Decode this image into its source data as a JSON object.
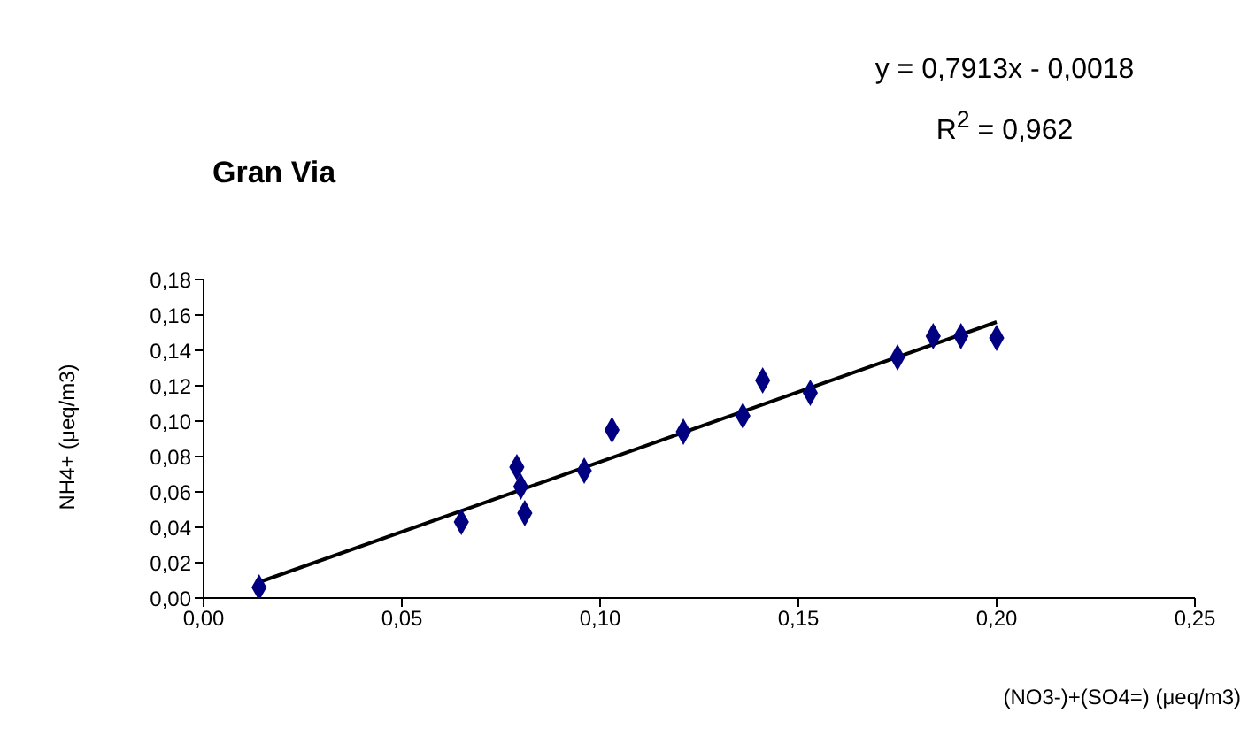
{
  "chart_data": {
    "type": "scatter",
    "title": "Gran Via",
    "xlabel": "(NO3-)+(SO4=) (μeq/m3)",
    "ylabel": "NH4+ (μeq/m3)",
    "annotations": [
      "y = 0,7913x - 0,0018",
      "R$^{2}$ = 0,962"
    ],
    "xlim": [
      0,
      0.25
    ],
    "ylim": [
      0,
      0.18
    ],
    "xticks": [
      {
        "value": 0,
        "label": "0,00"
      },
      {
        "value": 0.05,
        "label": "0,05"
      },
      {
        "value": 0.1,
        "label": "0,10"
      },
      {
        "value": 0.15,
        "label": "0,15"
      },
      {
        "value": 0.2,
        "label": "0,20"
      },
      {
        "value": 0.25,
        "label": "0,25"
      }
    ],
    "yticks": [
      {
        "value": 0,
        "label": "0,00"
      },
      {
        "value": 0.02,
        "label": "0,02"
      },
      {
        "value": 0.04,
        "label": "0,04"
      },
      {
        "value": 0.06,
        "label": "0,06"
      },
      {
        "value": 0.08,
        "label": "0,08"
      },
      {
        "value": 0.1,
        "label": "0,10"
      },
      {
        "value": 0.12,
        "label": "0,12"
      },
      {
        "value": 0.14,
        "label": "0,14"
      },
      {
        "value": 0.16,
        "label": "0,16"
      },
      {
        "value": 0.18,
        "label": "0,18"
      }
    ],
    "series": [
      {
        "marker": "diamond",
        "color": "#000080",
        "x": [
          0.014,
          0.065,
          0.079,
          0.08,
          0.081,
          0.096,
          0.103,
          0.121,
          0.136,
          0.141,
          0.153,
          0.175,
          0.184,
          0.191,
          0.2
        ],
        "values": [
          0.006,
          0.043,
          0.074,
          0.063,
          0.048,
          0.072,
          0.095,
          0.094,
          0.103,
          0.123,
          0.116,
          0.136,
          0.148,
          0.148,
          0.147
        ]
      },
      {
        "type": "line",
        "color": "#000000",
        "x": [
          0.014,
          0.2
        ],
        "values": [
          0.009,
          0.156
        ]
      }
    ]
  }
}
